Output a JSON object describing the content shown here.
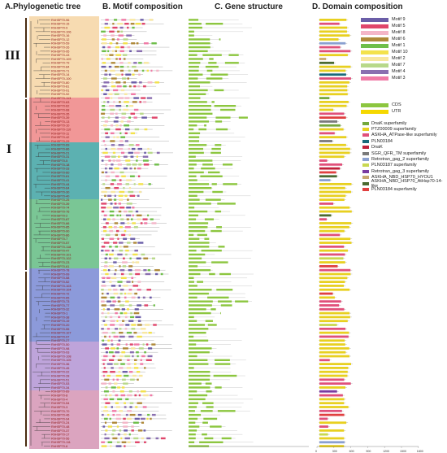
{
  "panels": {
    "a": "A.Phylogenetic tree",
    "b": "B. Motif composition",
    "c": "C. Gene structure",
    "d": "D. Domain composition"
  },
  "clades": {
    "c3": "III",
    "c1": "I",
    "c2": "II"
  },
  "motif_legend": [
    {
      "label": "Motif 9",
      "color": "#6b5ea8"
    },
    {
      "label": "Motif 5",
      "color": "#e0466b"
    },
    {
      "label": "Motif 8",
      "color": "#f4b6c8"
    },
    {
      "label": "Motif 6",
      "color": "#b08a3a"
    },
    {
      "label": "Motif 1",
      "color": "#6fbf4a"
    },
    {
      "label": "Motif 10",
      "color": "#f3e24c"
    },
    {
      "label": "Motif 2",
      "color": "#f8e7a0"
    },
    {
      "label": "Motif 7",
      "color": "#b8d98a"
    },
    {
      "label": "Motif 4",
      "color": "#8a6fb0"
    },
    {
      "label": "Motif 3",
      "color": "#f07aa6"
    }
  ],
  "gene_legend": [
    {
      "label": "CDS",
      "color": "#8cc63f"
    },
    {
      "label": "UTR",
      "color": "#f5d800"
    }
  ],
  "domain_legend": [
    {
      "label": "DnaK superfamily",
      "color": "#74a83c"
    },
    {
      "label": "PTZ00009 superfamily",
      "color": "#e8d020"
    },
    {
      "label": "ASKHA_ATPase-like superfamily",
      "color": "#e0507a"
    },
    {
      "label": "PLN03184",
      "color": "#1a6a7a"
    },
    {
      "label": "DnaK",
      "color": "#c0203a"
    },
    {
      "label": "SGR_QFR_TM superfamily",
      "color": "#7a7a7a"
    },
    {
      "label": "Retrotran_gag_2 superfamily",
      "color": "#8aa0d0"
    },
    {
      "label": "PLN03187 superfamily",
      "color": "#c8d850"
    },
    {
      "label": "Retrotran_gag_3 superfamily",
      "color": "#7a3aa0"
    },
    {
      "label": "ASKHA_NBD_HSP70_HYOU1",
      "color": "#c8a870"
    },
    {
      "label": "ASKHA_NBD_HSP70_AtHsp70-14-like",
      "color": "#4a6a30"
    },
    {
      "label": "PLN03184 superfamily",
      "color": "#e04040"
    }
  ],
  "domain_axis": [
    "0",
    "300",
    "600",
    "900",
    "1200",
    "1500",
    "1800"
  ],
  "clade3_labels": [
    "RhHSP70-96",
    "RhHSP70-15",
    "RhHSP70-9",
    "RhHSP70-106",
    "RhHSP70-16",
    "RhHSP70-12",
    "RhHSP70-59",
    "RhHSP70-26",
    "RhHSP70-95",
    "RhHSP70-43",
    "RhHSP70-109",
    "RhHSP70-79",
    "RhHSP70-84",
    "RhHSP70-71",
    "RhHSP70-14",
    "RhHSP70-100",
    "RhHSP70-80",
    "RhHSP70-81",
    "RhHSP70-91",
    "RhHSP70-92",
    "RhHSP70-113"
  ],
  "clade1_labels": [
    "RhHSP70-63",
    "RhHSP70-62",
    "RhHSP70-68",
    "RhHSP70-35",
    "RhHSP70-39",
    "RhHSP70-13",
    "RhHSP70-10",
    "RhHSP70-110",
    "RhHSP70-11",
    "RhHSP70-42",
    "RhHSP70-29",
    "RhHSP70-69",
    "RhHSP70-86",
    "RhHSP70-21",
    "RhHSP70-31",
    "RhHSP70-5",
    "RhHSP70-18",
    "RhHSP70-33",
    "RhHSP70-60",
    "RhHSP70-61",
    "RhHSP70-41",
    "RhHSP70-44",
    "RhHSP70-64",
    "RhHSP70-30",
    "RhHSP70-40",
    "RhHSP70-25",
    "RhHSP70-39",
    "RhHSP70-74",
    "RhHSP70-76",
    "RhHSP70-2",
    "RhHSP70-87",
    "RhHSP70-66",
    "RhHSP70-85",
    "RhHSP70-90",
    "RhHSP70-86",
    "RhHSP70-7",
    "RhHSP70-57",
    "RhHSP70-118",
    "RhHSP70-47",
    "RhHSP70-101",
    "RhHSP70-102",
    "RhHSP70-23",
    "RhHSP70-61",
    "RhHSP70-78"
  ],
  "clade2_labels": [
    "RhHSP70-99",
    "RhHSP70-58",
    "RhHSP70-52",
    "RhHSP70-103",
    "RhHSP70-104",
    "RhHSP70-72",
    "RhHSP70-65",
    "RhHSP70-73",
    "RhHSP70-77",
    "RhHSP70-32",
    "RhHSP70-1",
    "RhHSP70-38",
    "RhHSP70-19",
    "RhHSP70-20",
    "RhHSP70-55",
    "RhHSP70-107",
    "RhHSP70-97",
    "RhHSP70-27",
    "RhHSP70-50",
    "RhHSP70-98",
    "RhHSP70-93",
    "RhHSP70-108",
    "RhHSP70-105",
    "RhHSP70-36",
    "RhHSP70-45",
    "RhHSP70-22",
    "RhHSP70-28",
    "RhHSP70-51",
    "RhHSP70-53",
    "RhHSP70-34",
    "RhHSP70-89",
    "RhHSP70-8",
    "RhHSP70-4",
    "RhHSP70-54",
    "RhHSP70-3",
    "RhHSP70-70",
    "RhHSP70-46",
    "RhHSP70-94",
    "RhHSP70-24",
    "RhHSP70-48",
    "RhHSP70-37",
    "RhHSP70-17",
    "RhHSP70-56",
    "RhHSP70-111",
    "RhHSP70-6"
  ]
}
